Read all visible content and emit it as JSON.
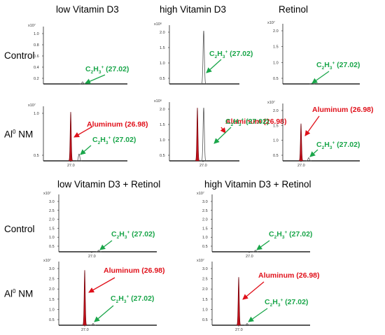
{
  "column_titles": {
    "low_vd3": "low Vitamin D3",
    "high_vd3": "high Vitamin D3",
    "retinol": "Retinol",
    "low_vd3_retinol": "low Vitamin D3 + Retinol",
    "high_vd3_retinol": "high Vitamin D3 + Retinol"
  },
  "row_labels": {
    "control": "Control",
    "al_nm_base": "Al",
    "al_nm_sup": "0",
    "al_nm_rest": " NM"
  },
  "colors": {
    "aluminum": "#c0101a",
    "c2h3": "#1aa64a",
    "trace": "#555555"
  },
  "chart_data": [
    {
      "type": "line",
      "id": "low_vd3_control",
      "title": "low Vitamin D3",
      "row": "Control",
      "y_multiplier": "x10⁷",
      "yticks": [
        "1.0",
        "0.8",
        "0.6",
        "0.4",
        "0.2"
      ],
      "xticks": [],
      "peaks": [
        {
          "label": "C2H3+ (27.02)",
          "mz": 27.02,
          "rel_height": 0.04
        }
      ],
      "annotations": [
        {
          "species": "C",
          "sub": "2",
          "species2": "H",
          "sub2": "3",
          "sup": "+",
          "mass": " (27.02)",
          "color": "green"
        }
      ]
    },
    {
      "type": "line",
      "id": "high_vd3_control",
      "title": "high Vitamin D3",
      "row": "Control",
      "y_multiplier": "x10⁶",
      "yticks": [
        "2.0",
        "1.5",
        "1.0",
        "0.5"
      ],
      "xticks": [],
      "peaks": [
        {
          "label": "C2H3+ (27.02)",
          "mz": 27.02,
          "rel_height": 1.0
        }
      ],
      "annotations": [
        {
          "species": "C",
          "sub": "2",
          "species2": "H",
          "sub2": "3",
          "sup": "+",
          "mass": " (27.02)",
          "color": "green"
        }
      ]
    },
    {
      "type": "line",
      "id": "retinol_control",
      "title": "Retinol",
      "row": "Control",
      "y_multiplier": "x10⁷",
      "yticks": [
        "2.0",
        "1.5",
        "1.0",
        "0.5"
      ],
      "xticks": [],
      "peaks": [
        {
          "label": "C2H3+ (27.02)",
          "mz": 27.02,
          "rel_height": 0.01
        }
      ],
      "annotations": [
        {
          "species": "C",
          "sub": "2",
          "species2": "H",
          "sub2": "3",
          "sup": "+",
          "mass": " (27.02)",
          "color": "green"
        }
      ]
    },
    {
      "type": "line",
      "id": "low_vd3_al",
      "title": "low Vitamin D3",
      "row": "Al0 NM",
      "y_multiplier": "x10⁷",
      "yticks": [
        "1.0",
        "0.5"
      ],
      "xticks": [
        "27.0"
      ],
      "peaks": [
        {
          "label": "Aluminum (26.98)",
          "mz": 26.98,
          "rel_height": 1.0,
          "filled": true
        },
        {
          "label": "C2H3+ (27.02)",
          "mz": 27.02,
          "rel_height": 0.14
        }
      ],
      "annotations": [
        {
          "text": "Aluminum (26.98)",
          "color": "red"
        },
        {
          "species": "C",
          "sub": "2",
          "species2": "H",
          "sub2": "3",
          "sup": "+",
          "mass": " (27.02)",
          "color": "green"
        }
      ]
    },
    {
      "type": "line",
      "id": "high_vd3_al",
      "title": "high Vitamin D3",
      "row": "Al0 NM",
      "y_multiplier": "x10⁶",
      "yticks": [
        "2.0",
        "1.5",
        "1.0",
        "0.5"
      ],
      "xticks": [
        "27.0"
      ],
      "peaks": [
        {
          "label": "Aluminum (26.98)",
          "mz": 26.98,
          "rel_height": 1.0,
          "filled": true
        },
        {
          "label": "C2H3+ (27.02)",
          "mz": 27.02,
          "rel_height": 1.0
        }
      ],
      "annotations": [
        {
          "text": "Aluminum (26.98)",
          "color": "red"
        },
        {
          "species": "C",
          "sub": "2",
          "species2": "H",
          "sub2": "3",
          "sup": "+",
          "mass": " (27.02)",
          "color": "green"
        }
      ]
    },
    {
      "type": "line",
      "id": "retinol_al",
      "title": "Retinol",
      "row": "Al0 NM",
      "y_multiplier": "x10⁷",
      "yticks": [
        "2.0",
        "1.5",
        "1.0",
        "0.5"
      ],
      "xticks": [
        "27.0"
      ],
      "peaks": [
        {
          "label": "Aluminum (26.98)",
          "mz": 26.98,
          "rel_height": 0.72,
          "filled": true
        },
        {
          "label": "C2H3+ (27.02)",
          "mz": 27.02,
          "rel_height": 0.06
        }
      ],
      "annotations": [
        {
          "text": "Aluminum (26.98)",
          "color": "red"
        },
        {
          "species": "C",
          "sub": "2",
          "species2": "H",
          "sub2": "3",
          "sup": "+",
          "mass": " (27.02)",
          "color": "green"
        }
      ]
    },
    {
      "type": "line",
      "id": "low_vd3_ret_control",
      "title": "low Vitamin D3 + Retinol",
      "row": "Control",
      "y_multiplier": "x10⁷",
      "yticks": [
        "3.0",
        "2.5",
        "2.0",
        "1.5",
        "1.0",
        "0.5"
      ],
      "xticks": [
        "27.0"
      ],
      "peaks": [
        {
          "label": "C2H3+ (27.02)",
          "mz": 27.02,
          "rel_height": 0.03
        }
      ],
      "annotations": [
        {
          "species": "C",
          "sub": "2",
          "species2": "H",
          "sub2": "3",
          "sup": "+",
          "mass": " (27.02)",
          "color": "green"
        }
      ]
    },
    {
      "type": "line",
      "id": "high_vd3_ret_control",
      "title": "high Vitamin D3 + Retinol",
      "row": "Control",
      "y_multiplier": "x10⁷",
      "yticks": [
        "3.0",
        "2.5",
        "2.0",
        "1.5",
        "1.0",
        "0.5"
      ],
      "xticks": [
        "27.0"
      ],
      "peaks": [
        {
          "label": "C2H3+ (27.02)",
          "mz": 27.02,
          "rel_height": 0.03
        }
      ],
      "annotations": [
        {
          "species": "C",
          "sub": "2",
          "species2": "H",
          "sub2": "3",
          "sup": "+",
          "mass": " (27.02)",
          "color": "green"
        }
      ]
    },
    {
      "type": "line",
      "id": "low_vd3_ret_al",
      "title": "low Vitamin D3 + Retinol",
      "row": "Al0 NM",
      "y_multiplier": "x10⁷",
      "yticks": [
        "3.0",
        "2.5",
        "2.0",
        "1.5",
        "1.0",
        "0.5"
      ],
      "xticks": [
        "27.0"
      ],
      "peaks": [
        {
          "label": "Aluminum (26.98)",
          "mz": 26.98,
          "rel_height": 0.95,
          "filled": true
        },
        {
          "label": "C2H3+ (27.02)",
          "mz": 27.02,
          "rel_height": 0.03
        }
      ],
      "annotations": [
        {
          "text": "Aluminum (26.98)",
          "color": "red"
        },
        {
          "species": "C",
          "sub": "2",
          "species2": "H",
          "sub2": "3",
          "sup": "+",
          "mass": " (27.02)",
          "color": "green"
        }
      ]
    },
    {
      "type": "line",
      "id": "high_vd3_ret_al",
      "title": "high Vitamin D3 + Retinol",
      "row": "Al0 NM",
      "y_multiplier": "x10⁷",
      "yticks": [
        "3.0",
        "2.5",
        "2.0",
        "1.5",
        "1.0",
        "0.5"
      ],
      "xticks": [
        "27.0"
      ],
      "peaks": [
        {
          "label": "Aluminum (26.98)",
          "mz": 26.98,
          "rel_height": 0.83,
          "filled": true
        },
        {
          "label": "C2H3+ (27.02)",
          "mz": 27.02,
          "rel_height": 0.03
        }
      ],
      "annotations": [
        {
          "text": "Aluminum (26.98)",
          "color": "red"
        },
        {
          "species": "C",
          "sub": "2",
          "species2": "H",
          "sub2": "3",
          "sup": "+",
          "mass": " (27.02)",
          "color": "green"
        }
      ]
    }
  ]
}
